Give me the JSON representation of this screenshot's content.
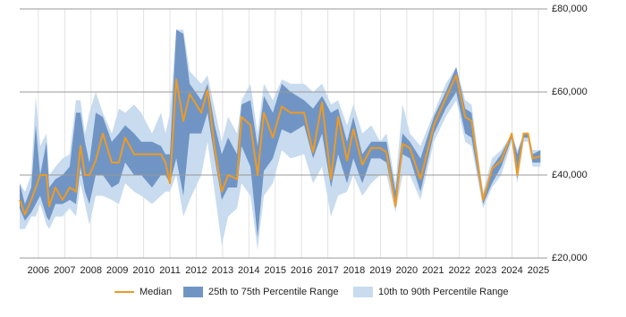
{
  "chart_data": {
    "type": "band-line",
    "x": [
      2005.29,
      2005.49,
      2005.73,
      2005.9,
      2006.07,
      2006.31,
      2006.41,
      2006.65,
      2006.92,
      2007.19,
      2007.43,
      2007.6,
      2007.77,
      2007.94,
      2008.18,
      2008.45,
      2008.79,
      2009.06,
      2009.3,
      2009.64,
      2009.91,
      2010.32,
      2010.66,
      2010.83,
      2011.0,
      2011.24,
      2011.51,
      2011.75,
      2012.19,
      2012.43,
      2012.7,
      2012.97,
      2013.21,
      2013.55,
      2013.72,
      2014.06,
      2014.33,
      2014.57,
      2014.91,
      2015.25,
      2015.59,
      2016.1,
      2016.44,
      2016.78,
      2017.12,
      2017.39,
      2017.73,
      2017.97,
      2018.31,
      2018.65,
      2018.99,
      2019.23,
      2019.57,
      2019.84,
      2020.12,
      2020.52,
      2021.03,
      2021.48,
      2021.88,
      2022.22,
      2022.46,
      2022.9,
      2023.24,
      2023.59,
      2023.99,
      2024.2,
      2024.44,
      2024.61,
      2024.78,
      2025.08
    ],
    "series": [
      {
        "name": "Median",
        "color": "#ee9a23",
        "values": [
          34000,
          30500,
          34000,
          37000,
          40000,
          40000,
          32500,
          37000,
          34000,
          37000,
          36000,
          47000,
          40000,
          40000,
          43500,
          50000,
          43000,
          43000,
          49000,
          45000,
          45000,
          45000,
          45000,
          43000,
          38000,
          63000,
          53000,
          59500,
          55000,
          60500,
          46500,
          36000,
          40000,
          39000,
          54000,
          52000,
          40000,
          55000,
          49000,
          56500,
          55000,
          55000,
          45500,
          57500,
          39000,
          54000,
          43500,
          51000,
          42500,
          46500,
          46500,
          45500,
          32500,
          47500,
          46500,
          39000,
          52000,
          58500,
          64000,
          54000,
          53000,
          34000,
          41500,
          43500,
          50000,
          40000,
          50000,
          50000,
          44000,
          44500
        ]
      },
      {
        "name": "25th to 75th Percentile Range",
        "color": "#7095c4",
        "lower": [
          32000,
          29000,
          31000,
          33000,
          35000,
          30000,
          29000,
          33000,
          33000,
          34000,
          33000,
          42000,
          36000,
          33000,
          40000,
          40000,
          37000,
          38000,
          43000,
          40000,
          40000,
          37000,
          40000,
          40000,
          38000,
          44000,
          35000,
          50000,
          50000,
          55000,
          44000,
          34000,
          37000,
          37000,
          47000,
          42000,
          25000,
          41000,
          44000,
          51000,
          50000,
          52000,
          44000,
          50000,
          37000,
          45000,
          38000,
          44000,
          38000,
          44000,
          44000,
          43000,
          32000,
          45000,
          44000,
          36000,
          50000,
          56000,
          60000,
          50000,
          49000,
          33000,
          38000,
          42000,
          49000,
          39000,
          49000,
          49000,
          43000,
          43000
        ],
        "upper": [
          38000,
          33000,
          37000,
          52000,
          40000,
          48000,
          37000,
          39000,
          40000,
          42000,
          55000,
          55000,
          48000,
          43000,
          55000,
          54000,
          48000,
          50000,
          52000,
          50000,
          48000,
          48000,
          47000,
          45000,
          45000,
          75000,
          74000,
          62000,
          58000,
          62000,
          52000,
          45000,
          49000,
          45000,
          57000,
          58000,
          47000,
          59000,
          55000,
          62000,
          60000,
          58000,
          56000,
          59000,
          55000,
          56000,
          48000,
          54000,
          45000,
          48000,
          48000,
          48000,
          36000,
          50000,
          48000,
          44000,
          54000,
          60000,
          66000,
          56000,
          55000,
          35000,
          42000,
          45000,
          50000,
          45000,
          50000,
          50000,
          45000,
          46000
        ]
      },
      {
        "name": "10th to 90th Percentile Range",
        "color": "#c8dbef",
        "lower": [
          27000,
          27000,
          30000,
          30000,
          33000,
          28000,
          27000,
          30000,
          30000,
          32000,
          30000,
          38000,
          33000,
          28000,
          35000,
          35000,
          34000,
          33000,
          38000,
          36000,
          35000,
          33000,
          35000,
          36000,
          36000,
          40000,
          30000,
          34000,
          40000,
          48000,
          36000,
          23000,
          30000,
          32000,
          38000,
          35000,
          22000,
          35000,
          38000,
          46000,
          44000,
          45000,
          38000,
          42000,
          30000,
          35000,
          36000,
          40000,
          35000,
          38000,
          40000,
          40000,
          31000,
          40000,
          40000,
          34000,
          48000,
          54000,
          58000,
          48000,
          47000,
          32000,
          37000,
          40000,
          48000,
          38000,
          48000,
          48000,
          42000,
          42000
        ],
        "upper": [
          38000,
          36000,
          40000,
          59000,
          47000,
          50000,
          40000,
          42000,
          44000,
          45000,
          58000,
          58000,
          50000,
          55000,
          60000,
          55000,
          50000,
          56000,
          55000,
          57000,
          55000,
          50000,
          55000,
          50000,
          55000,
          75000,
          75000,
          65000,
          62000,
          64000,
          56000,
          48000,
          54000,
          50000,
          58000,
          62000,
          50000,
          62000,
          58000,
          63000,
          62000,
          62000,
          60000,
          62000,
          57000,
          58000,
          52000,
          57000,
          50000,
          52000,
          48000,
          50000,
          38000,
          57000,
          50000,
          47000,
          55000,
          62000,
          66000,
          58000,
          57000,
          36000,
          44000,
          46000,
          50000,
          46000,
          50000,
          50000,
          46000,
          46000
        ]
      }
    ],
    "xlim": [
      2005.29,
      2025.34
    ],
    "xticks": [
      2006,
      2007,
      2008,
      2009,
      2010,
      2011,
      2012,
      2013,
      2014,
      2015,
      2016,
      2017,
      2018,
      2019,
      2020,
      2021,
      2022,
      2023,
      2024,
      2025
    ],
    "ylim": [
      20000,
      80000
    ],
    "yticks": [
      {
        "value": 20000,
        "label": "£20,000"
      },
      {
        "value": 40000,
        "label": "£40,000"
      },
      {
        "value": 60000,
        "label": "£60,000"
      },
      {
        "value": 80000,
        "label": "£80,000"
      }
    ],
    "grid": true,
    "legend": "bottom"
  }
}
